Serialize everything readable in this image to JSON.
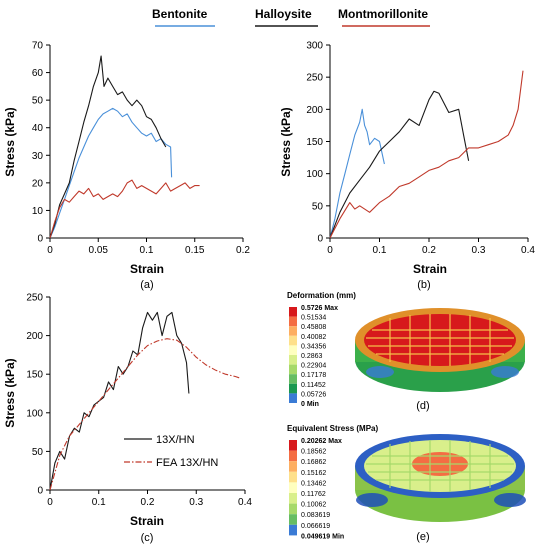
{
  "legend": {
    "items": [
      {
        "name": "Bentonite",
        "color": "#4a90d9"
      },
      {
        "name": "Halloysite",
        "color": "#1a1a1a"
      },
      {
        "name": "Montmorillonite",
        "color": "#c0392b"
      }
    ]
  },
  "chart_data": [
    {
      "panel": "(a)",
      "type": "line",
      "xlabel": "Strain",
      "ylabel": "Stress (kPa)",
      "xlim": [
        0,
        0.2
      ],
      "ylim": [
        0,
        70
      ],
      "xticks": [
        "0",
        "0.05",
        "0.1",
        "0.15",
        "0.2"
      ],
      "yticks": [
        "0",
        "10",
        "20",
        "30",
        "40",
        "50",
        "60",
        "70"
      ],
      "series": [
        {
          "name": "Bentonite",
          "color": "#4a90d9",
          "x": [
            0,
            0.005,
            0.01,
            0.015,
            0.02,
            0.025,
            0.03,
            0.035,
            0.04,
            0.045,
            0.05,
            0.055,
            0.06,
            0.065,
            0.07,
            0.075,
            0.08,
            0.085,
            0.09,
            0.095,
            0.1,
            0.105,
            0.11,
            0.115,
            0.12,
            0.125,
            0.126
          ],
          "y": [
            0,
            4,
            9,
            14,
            19,
            24,
            29,
            33,
            37,
            40,
            43,
            45,
            46,
            47,
            46,
            44,
            45,
            42,
            40,
            38,
            37,
            38,
            35,
            36,
            34,
            33,
            22
          ]
        },
        {
          "name": "Halloysite",
          "color": "#1a1a1a",
          "x": [
            0,
            0.005,
            0.01,
            0.015,
            0.02,
            0.025,
            0.03,
            0.035,
            0.04,
            0.045,
            0.05,
            0.053,
            0.056,
            0.06,
            0.065,
            0.07,
            0.075,
            0.08,
            0.085,
            0.09,
            0.095,
            0.1,
            0.105,
            0.11,
            0.115,
            0.12
          ],
          "y": [
            0,
            5,
            12,
            16,
            20,
            28,
            35,
            42,
            48,
            55,
            60,
            66,
            55,
            58,
            55,
            52,
            53,
            50,
            48,
            50,
            48,
            44,
            43,
            40,
            36,
            33
          ]
        },
        {
          "name": "Montmorillonite",
          "color": "#c0392b",
          "x": [
            0,
            0.005,
            0.01,
            0.015,
            0.02,
            0.025,
            0.03,
            0.035,
            0.04,
            0.045,
            0.05,
            0.055,
            0.06,
            0.065,
            0.07,
            0.075,
            0.08,
            0.085,
            0.09,
            0.095,
            0.1,
            0.105,
            0.11,
            0.115,
            0.12,
            0.125,
            0.13,
            0.135,
            0.14,
            0.145,
            0.15,
            0.155
          ],
          "y": [
            0,
            6,
            11,
            14,
            13,
            15,
            17,
            16,
            18,
            15,
            16,
            14,
            15,
            16,
            15,
            17,
            20,
            21,
            18,
            19,
            18,
            17,
            16,
            18,
            20,
            17,
            18,
            19,
            20,
            18,
            19,
            19
          ]
        }
      ]
    },
    {
      "panel": "(b)",
      "type": "line",
      "xlabel": "Strain",
      "ylabel": "Stress (kPa)",
      "xlim": [
        0,
        0.4
      ],
      "ylim": [
        0,
        300
      ],
      "xticks": [
        "0",
        "0.1",
        "0.2",
        "0.3",
        "0.4"
      ],
      "yticks": [
        "0",
        "50",
        "100",
        "150",
        "200",
        "250",
        "300"
      ],
      "series": [
        {
          "name": "Bentonite",
          "color": "#4a90d9",
          "x": [
            0,
            0.01,
            0.02,
            0.03,
            0.04,
            0.05,
            0.06,
            0.065,
            0.07,
            0.075,
            0.08,
            0.09,
            0.1,
            0.11
          ],
          "y": [
            0,
            30,
            70,
            100,
            130,
            160,
            180,
            200,
            175,
            165,
            145,
            155,
            150,
            115
          ]
        },
        {
          "name": "Halloysite",
          "color": "#1a1a1a",
          "x": [
            0,
            0.02,
            0.04,
            0.06,
            0.08,
            0.1,
            0.12,
            0.14,
            0.16,
            0.18,
            0.2,
            0.21,
            0.22,
            0.24,
            0.26,
            0.27,
            0.28
          ],
          "y": [
            0,
            40,
            70,
            90,
            110,
            135,
            150,
            165,
            185,
            175,
            215,
            228,
            225,
            195,
            200,
            160,
            120
          ]
        },
        {
          "name": "Montmorillonite",
          "color": "#c0392b",
          "x": [
            0,
            0.02,
            0.04,
            0.05,
            0.06,
            0.08,
            0.1,
            0.12,
            0.14,
            0.16,
            0.18,
            0.2,
            0.22,
            0.24,
            0.26,
            0.28,
            0.3,
            0.32,
            0.34,
            0.36,
            0.37,
            0.38,
            0.39
          ],
          "y": [
            0,
            30,
            55,
            45,
            50,
            40,
            55,
            65,
            80,
            85,
            95,
            105,
            110,
            120,
            125,
            140,
            140,
            145,
            150,
            160,
            175,
            200,
            260
          ]
        }
      ]
    },
    {
      "panel": "(c)",
      "type": "line",
      "xlabel": "Strain",
      "ylabel": "Stress (kPa)",
      "xlim": [
        0,
        0.4
      ],
      "ylim": [
        0,
        250
      ],
      "xticks": [
        "0",
        "0.1",
        "0.2",
        "0.3",
        "0.4"
      ],
      "yticks": [
        "0",
        "50",
        "100",
        "150",
        "200",
        "250"
      ],
      "series": [
        {
          "name": "13X/HN",
          "color": "#1a1a1a",
          "dash": "solid",
          "x": [
            0,
            0.01,
            0.02,
            0.03,
            0.04,
            0.05,
            0.06,
            0.07,
            0.08,
            0.09,
            0.1,
            0.11,
            0.12,
            0.13,
            0.14,
            0.15,
            0.16,
            0.17,
            0.18,
            0.19,
            0.2,
            0.21,
            0.22,
            0.23,
            0.24,
            0.25,
            0.26,
            0.27,
            0.28,
            0.285
          ],
          "y": [
            0,
            35,
            50,
            40,
            70,
            80,
            75,
            100,
            95,
            110,
            115,
            120,
            140,
            130,
            160,
            150,
            160,
            180,
            175,
            210,
            230,
            220,
            230,
            200,
            225,
            230,
            200,
            190,
            165,
            125
          ]
        },
        {
          "name": "FEA 13X/HN",
          "color": "#c0392b",
          "dash": "dashdot",
          "x": [
            0,
            0.02,
            0.04,
            0.06,
            0.08,
            0.1,
            0.12,
            0.14,
            0.16,
            0.18,
            0.2,
            0.22,
            0.24,
            0.26,
            0.28,
            0.3,
            0.32,
            0.34,
            0.36,
            0.38,
            0.39
          ],
          "y": [
            0,
            45,
            70,
            85,
            100,
            115,
            130,
            145,
            160,
            175,
            187,
            193,
            196,
            194,
            185,
            172,
            162,
            155,
            150,
            147,
            145
          ]
        }
      ]
    }
  ],
  "panels": {
    "a_tag": "(a)",
    "b_tag": "(b)",
    "c_tag": "(c)",
    "d_tag": "(d)",
    "e_tag": "(e)"
  },
  "colorbar_d": {
    "title": "Deformation (mm)",
    "labels": [
      "0.5726 Max",
      "0.51534",
      "0.45808",
      "0.40082",
      "0.34356",
      "0.2863",
      "0.22904",
      "0.17178",
      "0.11452",
      "0.05726",
      "0 Min"
    ],
    "colors": [
      "#d7191c",
      "#f46d43",
      "#fdae61",
      "#fee08b",
      "#ffffbf",
      "#d9ef8b",
      "#a6d96a",
      "#66bd63",
      "#1a9850",
      "#3a7bd5"
    ]
  },
  "colorbar_e": {
    "title": "Equivalent Stress (MPa)",
    "labels": [
      "0.20262 Max",
      "0.18562",
      "0.16862",
      "0.15162",
      "0.13462",
      "0.11762",
      "0.10062",
      "0.083619",
      "0.066619",
      "0.049619 Min"
    ],
    "colors": [
      "#d7191c",
      "#f46d43",
      "#fdae61",
      "#fee08b",
      "#ffffbf",
      "#d9ef8b",
      "#a6d96a",
      "#66bd63",
      "#3a7bd5"
    ]
  }
}
